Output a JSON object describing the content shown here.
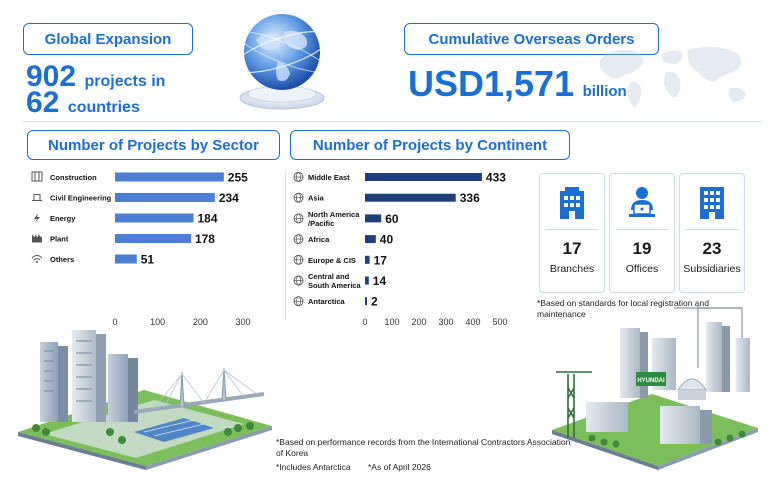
{
  "header": {
    "global_expansion_label": "Global Expansion",
    "projects_count": "902",
    "projects_text": "projects in",
    "countries_count": "62",
    "countries_text": "countries",
    "overseas_orders_label": "Cumulative Overseas Orders",
    "orders_amount": "USD1,571",
    "orders_unit": "billion"
  },
  "sector_section": {
    "title": "Number of Projects by Sector"
  },
  "continent_section": {
    "title": "Number of Projects by Continent"
  },
  "chart_data": [
    {
      "type": "bar",
      "orientation": "horizontal",
      "title": "Number of Projects by Sector",
      "categories": [
        "Construction",
        "Civil Engineering",
        "Energy",
        "Plant",
        "Others"
      ],
      "values": [
        255,
        234,
        184,
        178,
        51
      ],
      "xlim": [
        0,
        300
      ],
      "xticks": [
        0,
        100,
        200,
        300
      ],
      "bar_color": "#4a7fd4",
      "grid": false
    },
    {
      "type": "bar",
      "orientation": "horizontal",
      "title": "Number of Projects by Continent",
      "categories": [
        "Middle East",
        "Asia",
        "North America /Pacific",
        "Africa",
        "Europe & CIS",
        "Central and South America",
        "Antarctica"
      ],
      "category_lines": [
        [
          "Middle East"
        ],
        [
          "Asia"
        ],
        [
          "North America",
          "/Pacific"
        ],
        [
          "Africa"
        ],
        [
          "Europe & CIS"
        ],
        [
          "Central and",
          "South America"
        ],
        [
          "Antarctica"
        ]
      ],
      "values": [
        433,
        336,
        60,
        40,
        17,
        14,
        2
      ],
      "xlim": [
        0,
        500
      ],
      "xticks": [
        0,
        100,
        200,
        300,
        400,
        500
      ],
      "bar_color": "#1d3f7a",
      "grid": false
    }
  ],
  "stats": [
    {
      "value": "17",
      "label": "Branches",
      "icon": "building-icon"
    },
    {
      "value": "19",
      "label": "Offices",
      "icon": "office-worker-icon"
    },
    {
      "value": "23",
      "label": "Subsidiaries",
      "icon": "tower-icon"
    }
  ],
  "notes": {
    "local_registration": "*Based on standards for local registration and maintenance",
    "performance_records": "*Based on performance records from the International Contractors Association of Korea",
    "includes_antarctica": "*Includes Antarctica",
    "as_of": "*As of April 2026"
  },
  "sign_text": "HYUNDAI",
  "colors": {
    "accent": "#1a6fd6",
    "sector_bar": "#4a7fd4",
    "continent_bar": "#1d3f7a"
  }
}
